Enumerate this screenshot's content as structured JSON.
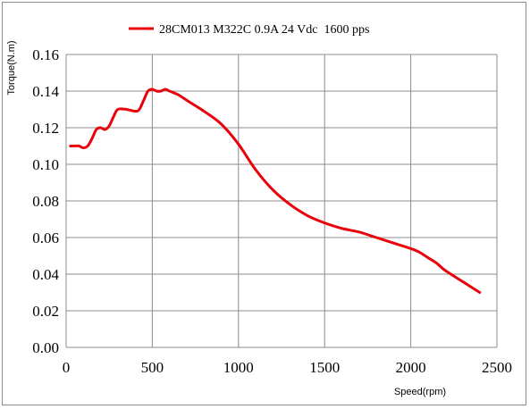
{
  "chart_data": {
    "type": "line",
    "title": "",
    "xlabel": "Speed(rpm)",
    "ylabel": "Torque(N.m)",
    "xlim": [
      0,
      2500
    ],
    "ylim": [
      0,
      0.16
    ],
    "x_ticks": [
      "0",
      "500",
      "1000",
      "1500",
      "2000",
      "2500"
    ],
    "y_ticks": [
      "0.00",
      "0.02",
      "0.04",
      "0.06",
      "0.08",
      "0.10",
      "0.12",
      "0.14",
      "0.16"
    ],
    "grid": true,
    "legend_position": "top-center",
    "series": [
      {
        "name": "28CM013 M322C 0.9A 24 Vdc  1600 pps",
        "color": "#e8000b",
        "x": [
          25,
          50,
          75,
          100,
          125,
          150,
          175,
          200,
          225,
          250,
          275,
          300,
          350,
          400,
          425,
          450,
          475,
          500,
          525,
          550,
          575,
          600,
          650,
          700,
          750,
          800,
          900,
          1000,
          1100,
          1200,
          1300,
          1400,
          1500,
          1600,
          1700,
          1800,
          1900,
          2000,
          2050,
          2100,
          2150,
          2200,
          2300,
          2400
        ],
        "y": [
          0.11,
          0.11,
          0.11,
          0.109,
          0.11,
          0.114,
          0.119,
          0.12,
          0.119,
          0.121,
          0.126,
          0.13,
          0.13,
          0.129,
          0.13,
          0.135,
          0.14,
          0.141,
          0.14,
          0.14,
          0.141,
          0.14,
          0.138,
          0.135,
          0.132,
          0.129,
          0.122,
          0.111,
          0.097,
          0.086,
          0.078,
          0.072,
          0.068,
          0.065,
          0.063,
          0.06,
          0.057,
          0.054,
          0.052,
          0.049,
          0.046,
          0.042,
          0.036,
          0.03
        ]
      }
    ]
  }
}
